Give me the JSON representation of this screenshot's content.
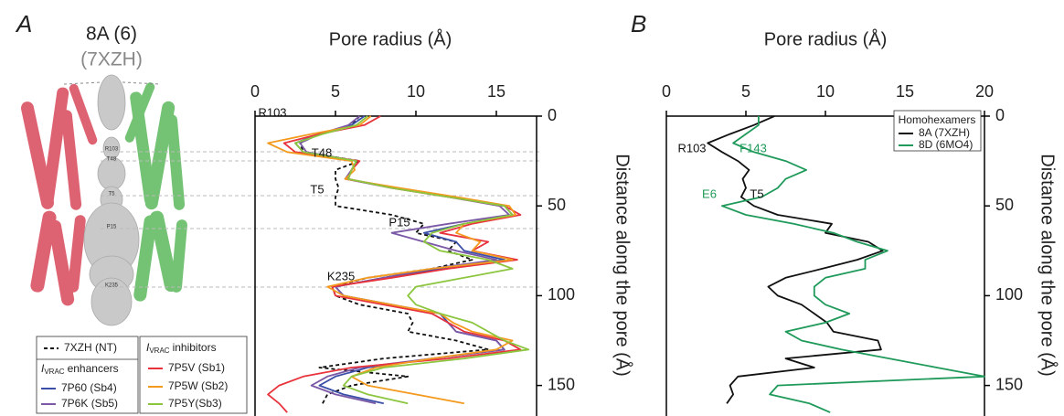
{
  "panel_labels": [
    "A",
    "B"
  ],
  "structure": {
    "title": "8A (6)",
    "subtitle": "(7XZH)",
    "residues": [
      "R103",
      "T48",
      "T5",
      "P15",
      "K235"
    ]
  },
  "chart_data": [
    {
      "type": "line",
      "x_label": "Distance along the pore (Å)",
      "y_label": "Pore radius (Å)",
      "x": [
        0,
        5,
        10,
        15,
        20,
        25,
        30,
        35,
        40,
        45,
        50,
        55,
        60,
        65,
        70,
        75,
        80,
        85,
        90,
        95,
        100,
        105,
        110,
        115,
        120,
        125,
        130,
        135,
        140,
        145,
        150,
        155,
        160,
        165
      ],
      "xlim": [
        0,
        167
      ],
      "xticks": [
        0,
        50,
        100,
        150
      ],
      "ylim": [
        0,
        17.5
      ],
      "yticks": [
        0,
        5,
        10,
        15
      ],
      "series": [
        {
          "name": "7XZH (NT)",
          "color": "#111111",
          "dash": true,
          "values": [
            6.5,
            6.0,
            4.0,
            2.8,
            3.0,
            6.5,
            5.0,
            5.0,
            5.2,
            5.0,
            5.0,
            8.5,
            10.5,
            10.0,
            12.5,
            12.0,
            13.5,
            11.0,
            7.0,
            4.8,
            5.0,
            6.5,
            9.5,
            9.8,
            9.5,
            12.5,
            14.5,
            8.0,
            4.0,
            9.5,
            6.0,
            4.5,
            4.2,
            null
          ]
        },
        {
          "name": "7P60 (Sb4)",
          "color": "#3b4fa8",
          "dash": false,
          "values": [
            6.8,
            6.0,
            4.0,
            2.5,
            3.0,
            6.3,
            6.0,
            5.7,
            8.8,
            12.2,
            15.5,
            16.0,
            13.0,
            10.5,
            12.5,
            13.0,
            15.5,
            11.5,
            8.0,
            5.0,
            5.5,
            8.5,
            11.5,
            12.0,
            12.5,
            15.0,
            15.5,
            11.0,
            7.0,
            5.0,
            4.0,
            5.5,
            8.0,
            null
          ]
        },
        {
          "name": "7P6K (Sb5)",
          "color": "#7b58a6",
          "dash": false,
          "values": [
            6.5,
            5.8,
            4.0,
            2.8,
            3.2,
            6.3,
            6.0,
            5.6,
            8.5,
            12.0,
            15.2,
            15.8,
            12.0,
            8.5,
            10.5,
            12.5,
            15.0,
            11.0,
            8.0,
            5.0,
            5.5,
            8.5,
            11.0,
            12.0,
            12.5,
            15.0,
            15.5,
            11.0,
            6.5,
            4.5,
            3.5,
            5.0,
            7.5,
            null
          ]
        },
        {
          "name": "7P5V (Sb1)",
          "color": "#e8323c",
          "dash": false,
          "values": [
            7.8,
            6.8,
            4.0,
            1.8,
            2.5,
            6.5,
            6.0,
            5.8,
            8.5,
            12.0,
            15.5,
            16.5,
            13.5,
            11.5,
            14.5,
            13.5,
            16.3,
            12.0,
            8.5,
            4.8,
            5.0,
            8.0,
            11.0,
            12.0,
            13.0,
            15.5,
            16.5,
            12.0,
            6.0,
            3.0,
            1.5,
            0.8,
            1.5,
            2.0
          ]
        },
        {
          "name": "7P5W (Sb2)",
          "color": "#f39a1e",
          "dash": false,
          "values": [
            7.2,
            6.5,
            3.5,
            0.8,
            2.0,
            6.0,
            6.2,
            5.6,
            9.0,
            12.5,
            15.8,
            16.2,
            13.0,
            12.5,
            14.0,
            13.5,
            16.0,
            11.0,
            7.0,
            4.5,
            5.5,
            8.5,
            11.5,
            12.3,
            13.5,
            16.0,
            15.0,
            11.0,
            7.5,
            6.0,
            7.0,
            10.0,
            13.0,
            null
          ]
        },
        {
          "name": "7P5Y(Sb3)",
          "color": "#8cc63f",
          "dash": false,
          "values": [
            7.0,
            6.3,
            4.2,
            2.5,
            3.0,
            6.3,
            6.0,
            5.8,
            8.5,
            12.0,
            15.5,
            16.0,
            13.0,
            11.0,
            10.5,
            11.5,
            14.5,
            16.0,
            13.0,
            10.0,
            9.5,
            10.0,
            11.5,
            13.5,
            14.5,
            15.5,
            17.0,
            13.0,
            8.0,
            6.0,
            5.5,
            7.0,
            9.5,
            null
          ]
        }
      ],
      "legend_headers": [
        {
          "symbol": "I",
          "subscript": "VRAC",
          "text": "enhancers"
        },
        {
          "symbol": "I",
          "subscript": "VRAC",
          "text": "inhibitors"
        }
      ],
      "annotations": [
        {
          "text": "R103",
          "color": "#111111"
        },
        {
          "text": "T48",
          "color": "#111111"
        },
        {
          "text": "T5",
          "color": "#111111"
        },
        {
          "text": "P15",
          "color": "#111111"
        },
        {
          "text": "K235",
          "color": "#111111"
        }
      ]
    },
    {
      "type": "line",
      "x_label": "Distance along the pore (Å)",
      "y_label": "Pore radius (Å)",
      "x": [
        0,
        5,
        10,
        15,
        20,
        25,
        30,
        35,
        40,
        45,
        50,
        55,
        60,
        65,
        70,
        75,
        80,
        85,
        90,
        95,
        100,
        105,
        110,
        115,
        120,
        125,
        130,
        135,
        140,
        145,
        150,
        155,
        160,
        165
      ],
      "xlim": [
        0,
        167
      ],
      "xticks": [
        0,
        50,
        100,
        150
      ],
      "ylim": [
        0,
        20
      ],
      "yticks": [
        0,
        5,
        10,
        15,
        20
      ],
      "legend_title": "Homohexamers",
      "series": [
        {
          "name": "8A (7XZH)",
          "color": "#111111",
          "dash": false,
          "values": [
            6.8,
            5.5,
            4.0,
            2.6,
            3.5,
            4.5,
            5.2,
            4.8,
            5.0,
            4.7,
            5.5,
            7.0,
            10.4,
            10.0,
            12.7,
            13.6,
            12.0,
            9.8,
            7.5,
            6.4,
            7.0,
            8.5,
            9.3,
            10.1,
            10.5,
            13.3,
            13.5,
            7.5,
            9.3,
            4.5,
            4.0,
            4.2,
            3.8,
            null
          ]
        },
        {
          "name": "8D (6MO4)",
          "color": "#1f9a5a",
          "dash": false,
          "values": [
            5.8,
            5.8,
            5.0,
            4.2,
            5.5,
            7.5,
            8.8,
            7.5,
            7.0,
            6.0,
            3.5,
            5.0,
            8.0,
            10.5,
            12.0,
            13.9,
            12.5,
            12.5,
            10.0,
            9.3,
            9.3,
            10.0,
            11.5,
            10.0,
            7.5,
            8.5,
            11.0,
            14.0,
            17.0,
            20.0,
            7.0,
            6.5,
            9.0,
            10.3
          ]
        }
      ],
      "annotations": [
        {
          "text": "R103",
          "color": "#111111"
        },
        {
          "text": "F143",
          "color": "#1f9a5a"
        },
        {
          "text": "E6",
          "color": "#1f9a5a"
        },
        {
          "text": "T5",
          "color": "#111111"
        }
      ]
    }
  ]
}
